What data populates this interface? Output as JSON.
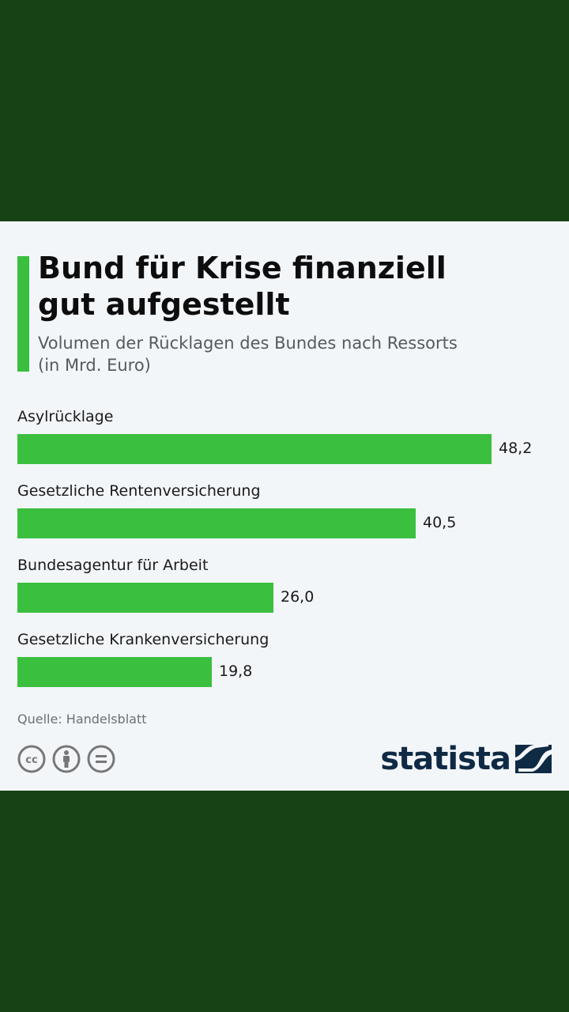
{
  "title_lines": [
    "Bund für Krise finanziell",
    "gut aufgestellt"
  ],
  "subtitle_lines": [
    "Volumen der Rücklagen des Bundes nach Ressorts",
    "(in Mrd. Euro)"
  ],
  "colors": {
    "background": "#164216",
    "card": "#f3f6f9",
    "bar": "#3bbf3f",
    "brand": "#0f2a44"
  },
  "chart_data": {
    "type": "bar",
    "orientation": "horizontal",
    "title": "Bund für Krise finanziell gut aufgestellt",
    "subtitle": "Volumen der Rücklagen des Bundes nach Ressorts (in Mrd. Euro)",
    "categories": [
      "Asylrücklage",
      "Gesetzliche Rentenversicherung",
      "Bundesagentur für Arbeit",
      "Gesetzliche Krankenversicherung"
    ],
    "values": [
      48.2,
      40.5,
      26.0,
      19.8
    ],
    "value_labels": [
      "48,2",
      "40,5",
      "26,0",
      "19,8"
    ],
    "xlim": [
      0,
      48.2
    ],
    "grid": false,
    "legend": "none"
  },
  "footer": {
    "source": "Quelle: Handelsblatt",
    "brand": "statista",
    "license_icons": [
      "cc-icon",
      "by-icon",
      "nd-icon"
    ]
  }
}
